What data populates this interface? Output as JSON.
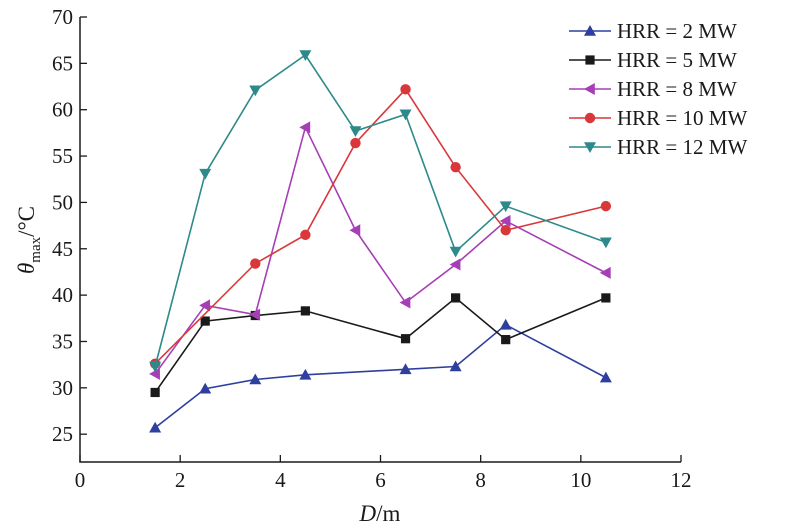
{
  "chart_data": {
    "type": "line",
    "xlabel": {
      "main": "D",
      "unit": "/m"
    },
    "ylabel": {
      "main": "θ",
      "sub": "max",
      "unit": "/°C"
    },
    "xlim": [
      0,
      12
    ],
    "ylim": [
      22,
      70
    ],
    "xticks": [
      0,
      2,
      4,
      6,
      8,
      10,
      12
    ],
    "yticks": [
      25,
      30,
      35,
      40,
      45,
      50,
      55,
      60,
      65,
      70
    ],
    "grid": false,
    "legend_position": "top-right",
    "x": [
      1.5,
      2.5,
      3.5,
      4.5,
      5.5,
      6.5,
      7.5,
      8.5,
      10.5
    ],
    "series": [
      {
        "name": "HRR = 2 MW",
        "color": "#2e3f9e",
        "marker": "triangle-up",
        "points": [
          [
            1.5,
            25.7
          ],
          [
            2.5,
            29.9
          ],
          [
            3.5,
            30.9
          ],
          [
            4.5,
            31.4
          ],
          [
            6.5,
            32.0
          ],
          [
            7.5,
            32.3
          ],
          [
            8.5,
            36.8
          ],
          [
            10.5,
            31.1
          ]
        ]
      },
      {
        "name": "HRR = 5 MW",
        "color": "#1a1a1a",
        "marker": "square",
        "points": [
          [
            1.5,
            29.5
          ],
          [
            2.5,
            37.2
          ],
          [
            3.5,
            37.8
          ],
          [
            4.5,
            38.3
          ],
          [
            6.5,
            35.3
          ],
          [
            7.5,
            39.7
          ],
          [
            8.5,
            35.2
          ],
          [
            10.5,
            39.7
          ]
        ]
      },
      {
        "name": "HRR = 8 MW",
        "color": "#a63eb5",
        "marker": "triangle-left",
        "points": [
          [
            1.5,
            31.5
          ],
          [
            2.5,
            38.9
          ],
          [
            3.5,
            37.9
          ],
          [
            4.5,
            58.1
          ],
          [
            5.5,
            47.0
          ],
          [
            6.5,
            39.2
          ],
          [
            7.5,
            43.3
          ],
          [
            8.5,
            48.0
          ],
          [
            10.5,
            42.4
          ]
        ]
      },
      {
        "name": "HRR = 10 MW",
        "color": "#d9373a",
        "marker": "circle",
        "points": [
          [
            1.5,
            32.6
          ],
          [
            3.5,
            43.4
          ],
          [
            4.5,
            46.5
          ],
          [
            5.5,
            56.4
          ],
          [
            6.5,
            62.2
          ],
          [
            7.5,
            53.8
          ],
          [
            8.5,
            47.0
          ],
          [
            10.5,
            49.6
          ]
        ]
      },
      {
        "name": "HRR = 12 MW",
        "color": "#2e8a8a",
        "marker": "triangle-down",
        "points": [
          [
            1.5,
            32.3
          ],
          [
            2.5,
            53.1
          ],
          [
            3.5,
            62.1
          ],
          [
            4.5,
            65.9
          ],
          [
            5.5,
            57.7
          ],
          [
            6.5,
            59.5
          ],
          [
            7.5,
            44.7
          ],
          [
            8.5,
            49.6
          ],
          [
            10.5,
            45.7
          ]
        ]
      }
    ]
  }
}
